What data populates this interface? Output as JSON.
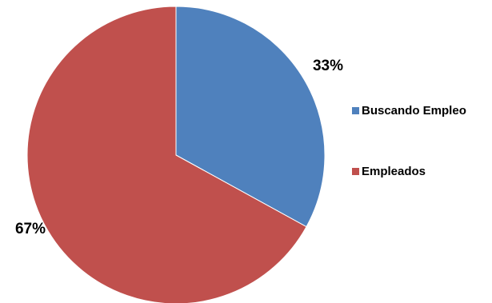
{
  "chart_data": {
    "type": "pie",
    "title": "",
    "categories": [
      "Buscando Empleo",
      "Empleados"
    ],
    "values": [
      33,
      67
    ],
    "value_labels": [
      "33%",
      "67%"
    ],
    "colors": [
      "#4f81bd",
      "#c0504d"
    ],
    "legend_position": "right",
    "start_angle": "12 o'clock, clockwise"
  }
}
